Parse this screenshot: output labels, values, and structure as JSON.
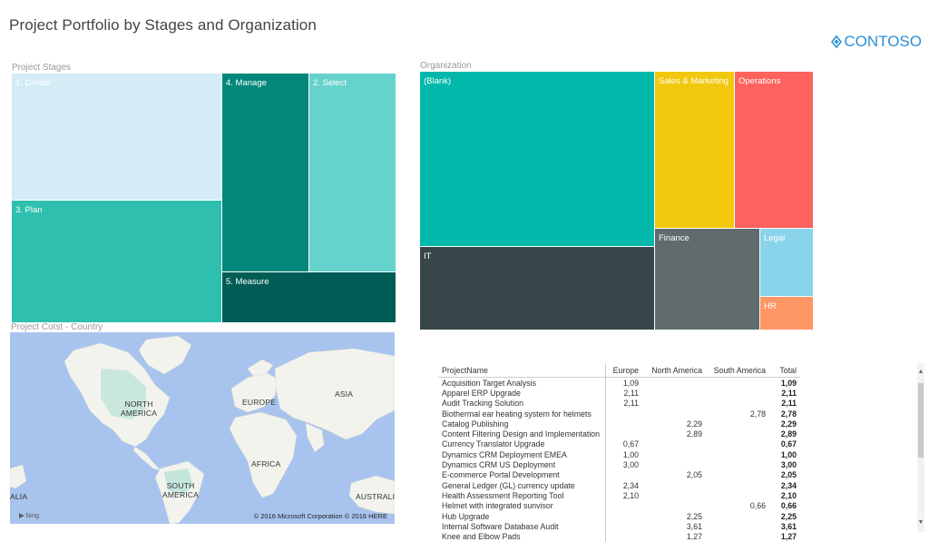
{
  "title": "Project Portfolio by Stages and Organization",
  "logo": {
    "text": "CONTOSO",
    "color": "#2b8fd4"
  },
  "stages": {
    "label": "Project Stages",
    "tiles": [
      {
        "name": "1. Create",
        "color": "#d3ecf6"
      },
      {
        "name": "4. Manage",
        "color": "#02877a"
      },
      {
        "name": "2. Select",
        "color": "#65d3cb"
      },
      {
        "name": "3. Plan",
        "color": "#2fbfae"
      },
      {
        "name": "5. Measure",
        "color": "#005d56"
      }
    ]
  },
  "organization": {
    "label": "Organization",
    "tiles": [
      {
        "name": "(Blank)",
        "color": "#01b8aa"
      },
      {
        "name": "Sales & Marketing",
        "color": "#f2c80f"
      },
      {
        "name": "Operations",
        "color": "#fd625e"
      },
      {
        "name": "IT",
        "color": "#374649"
      },
      {
        "name": "Finance",
        "color": "#5f6b6d"
      },
      {
        "name": "Legal",
        "color": "#8ad4eb"
      },
      {
        "name": "HR",
        "color": "#fe9666"
      }
    ]
  },
  "map": {
    "label": "Project Cotst - Country",
    "labels": {
      "north_america_1": "NORTH",
      "north_america_2": "AMERICA",
      "europe": "EUROPE",
      "asia": "ASIA",
      "africa": "AFRICA",
      "south_america_1": "SOUTH",
      "south_america_2": "AMERICA",
      "australia": "AUSTRALI",
      "asia_left": "ALIA"
    },
    "copyright": "© 2016 Microsoft Corporation   © 2016 HERE",
    "bing": "bing"
  },
  "table": {
    "columns": [
      "ProjectName",
      "Europe",
      "North America",
      "South America",
      "Total"
    ],
    "rows": [
      [
        "Acquisition Target Analysis",
        "1,09",
        "",
        "",
        "1,09"
      ],
      [
        "Apparel ERP Upgrade",
        "2,11",
        "",
        "",
        "2,11"
      ],
      [
        "Audit Tracking Solution",
        "2,11",
        "",
        "",
        "2,11"
      ],
      [
        "Biothermal ear heating system for helmets",
        "",
        "",
        "2,78",
        "2,78"
      ],
      [
        "Catalog Publishing",
        "",
        "2,29",
        "",
        "2,29"
      ],
      [
        "Content Filtering Design and Implementation",
        "",
        "2,89",
        "",
        "2,89"
      ],
      [
        "Currency Translator Upgrade",
        "0,67",
        "",
        "",
        "0,67"
      ],
      [
        "Dynamics CRM Deployment EMEA",
        "1,00",
        "",
        "",
        "1,00"
      ],
      [
        "Dynamics CRM US Deployment",
        "3,00",
        "",
        "",
        "3,00"
      ],
      [
        "E-commerce Portal Development",
        "",
        "2,05",
        "",
        "2,05"
      ],
      [
        "General Ledger (GL) currency update",
        "2,34",
        "",
        "",
        "2,34"
      ],
      [
        "Health Assessment Reporting Tool",
        "2,10",
        "",
        "",
        "2,10"
      ],
      [
        "Helmet with integrated sunvisor",
        "",
        "",
        "0,66",
        "0,66"
      ],
      [
        "Hub Upgrade",
        "",
        "2,25",
        "",
        "2,25"
      ],
      [
        "Internal Software Database Audit",
        "",
        "3,61",
        "",
        "3,61"
      ],
      [
        "Knee and Elbow Pads",
        "",
        "1,27",
        "",
        "1,27"
      ]
    ]
  }
}
